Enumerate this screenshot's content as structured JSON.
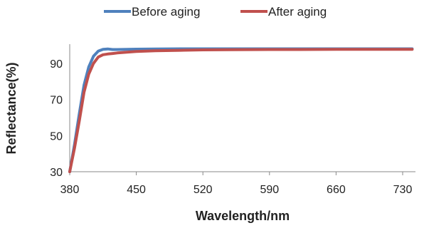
{
  "chart_data": {
    "type": "line",
    "xlabel": "Wavelength/nm",
    "ylabel": "Reflectance(%)",
    "xlim": [
      380,
      740
    ],
    "ylim": [
      30,
      100
    ],
    "x_ticks": [
      380,
      450,
      520,
      590,
      660,
      730
    ],
    "y_ticks": [
      30,
      50,
      70,
      90
    ],
    "x_tick_labels": [
      "380",
      "450",
      "520",
      "590",
      "660",
      "730"
    ],
    "y_tick_labels": [
      "30",
      "50",
      "70",
      "90"
    ],
    "legend_position": "top",
    "series": [
      {
        "name": "Before aging",
        "color": "#4f81bd",
        "x": [
          380,
          385,
          390,
          395,
          400,
          405,
          410,
          415,
          420,
          425,
          430,
          440,
          450,
          470,
          500,
          520,
          550,
          590,
          620,
          660,
          700,
          730,
          740
        ],
        "y": [
          30,
          45,
          62,
          78,
          88,
          94,
          96.8,
          97.8,
          98.0,
          97.7,
          97.7,
          97.8,
          97.9,
          98.0,
          98.1,
          98.1,
          98.1,
          98.1,
          98.1,
          98.1,
          98.1,
          98.1,
          98.1
        ]
      },
      {
        "name": "After aging",
        "color": "#c0504d",
        "x": [
          380,
          385,
          390,
          395,
          400,
          405,
          410,
          415,
          420,
          425,
          430,
          440,
          450,
          470,
          500,
          520,
          550,
          590,
          620,
          660,
          700,
          730,
          740
        ],
        "y": [
          30,
          43,
          58,
          74,
          84,
          90,
          93.5,
          94.8,
          95.2,
          95.5,
          95.8,
          96.2,
          96.6,
          97.0,
          97.3,
          97.5,
          97.6,
          97.7,
          97.7,
          97.8,
          97.8,
          97.8,
          97.8
        ]
      }
    ]
  }
}
